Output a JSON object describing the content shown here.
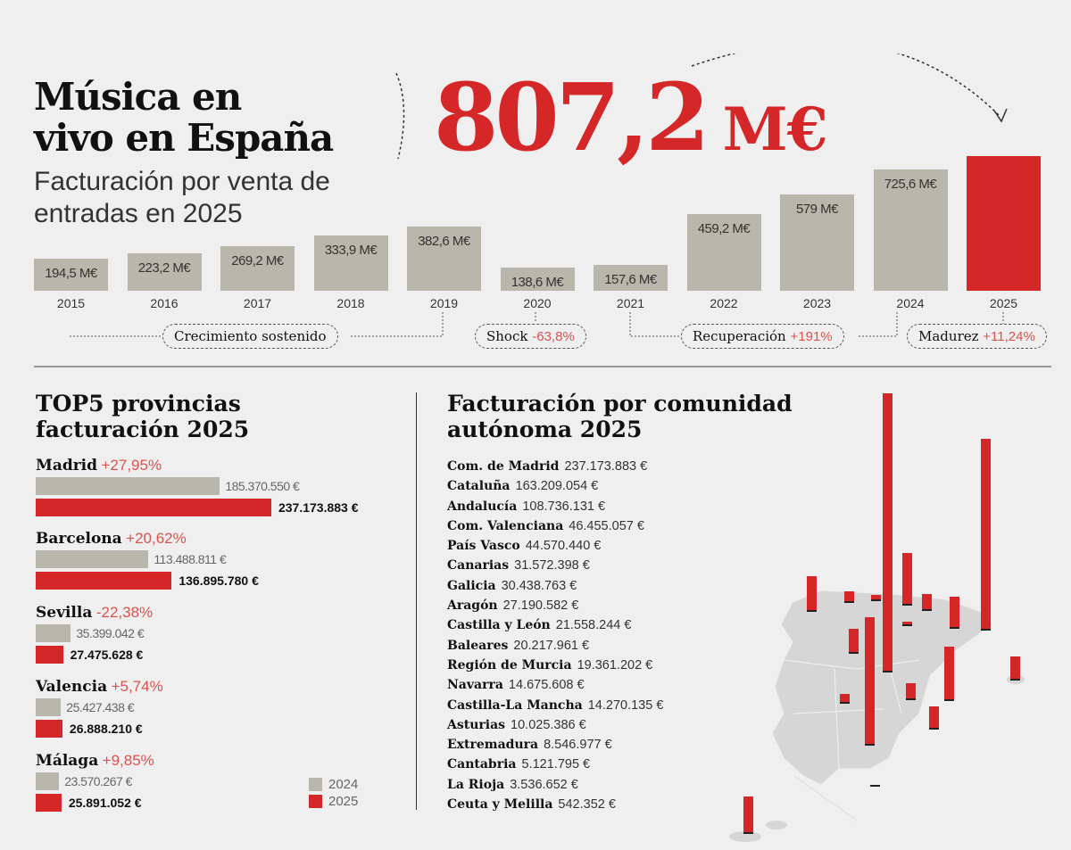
{
  "header": {
    "title_line1": "Música en",
    "title_line2": "vivo en España",
    "subtitle": "Facturación por venta de entradas en 2025",
    "total_value": "807,2",
    "total_unit": "M€"
  },
  "colors": {
    "accent": "#d62728",
    "gray": "#b9b7ab",
    "change": "#d9534f"
  },
  "chart_data": [
    {
      "type": "bar",
      "title": "",
      "categories": [
        "2015",
        "2016",
        "2017",
        "2018",
        "2019",
        "2020",
        "2021",
        "2022",
        "2023",
        "2024",
        "2025"
      ],
      "values": [
        194.5,
        223.2,
        269.2,
        333.9,
        382.6,
        138.6,
        157.6,
        459.2,
        579,
        725.6,
        807.2
      ],
      "labels": [
        "194,5 M€",
        "223,2 M€",
        "269,2 M€",
        "333,9 M€",
        "382,6 M€",
        "138,6 M€",
        "157,6 M€",
        "459,2 M€",
        "579 M€",
        "725,6 M€",
        ""
      ],
      "unit": "M€",
      "phases": [
        {
          "name": "Crecimiento sostenido",
          "change": ""
        },
        {
          "name": "Shock",
          "change": "-63,8%"
        },
        {
          "name": "Recuperación",
          "change": "+191%"
        },
        {
          "name": "Madurez",
          "change": "+11,24%"
        }
      ]
    },
    {
      "type": "bar",
      "orientation": "horizontal",
      "title": "TOP5 provincias facturación 2025",
      "legend": [
        "2024",
        "2025"
      ],
      "provinces": [
        {
          "name": "Madrid",
          "change": "+27,95%",
          "v2024": 185370550,
          "v2025": 237173883,
          "l2024": "185.370.550 €",
          "l2025": "237.173.883 €"
        },
        {
          "name": "Barcelona",
          "change": "+20,62%",
          "v2024": 113488811,
          "v2025": 136895780,
          "l2024": "113.488.811 €",
          "l2025": "136.895.780 €"
        },
        {
          "name": "Sevilla",
          "change": "-22,38%",
          "v2024": 35399042,
          "v2025": 27475628,
          "l2024": "35.399.042 €",
          "l2025": "27.475.628 €"
        },
        {
          "name": "Valencia",
          "change": "+5,74%",
          "v2024": 25427438,
          "v2025": 26888210,
          "l2024": "25.427.438 €",
          "l2025": "26.888.210 €"
        },
        {
          "name": "Málaga",
          "change": "+9,85%",
          "v2024": 23570267,
          "v2025": 25891052,
          "l2024": "23.570.267 €",
          "l2025": "25.891.052 €"
        }
      ]
    },
    {
      "type": "bar",
      "subtype": "map",
      "title": "Facturación por comunidad autónoma 2025",
      "regions": [
        {
          "name": "Com. de Madrid",
          "value": 237173883,
          "label": "237.173.883 €"
        },
        {
          "name": "Cataluña",
          "value": 163209054,
          "label": "163.209.054 €"
        },
        {
          "name": "Andalucía",
          "value": 108736131,
          "label": "108.736.131 €"
        },
        {
          "name": "Com. Valenciana",
          "value": 46455057,
          "label": "46.455.057 €"
        },
        {
          "name": "País Vasco",
          "value": 44570440,
          "label": "44.570.440 €"
        },
        {
          "name": "Canarias",
          "value": 31572398,
          "label": "31.572.398 €"
        },
        {
          "name": "Galicia",
          "value": 30438763,
          "label": "30.438.763 €"
        },
        {
          "name": "Aragón",
          "value": 27190582,
          "label": "27.190.582 €"
        },
        {
          "name": "Castilla y León",
          "value": 21558244,
          "label": "21.558.244 €"
        },
        {
          "name": "Baleares",
          "value": 20217961,
          "label": "20.217.961 €"
        },
        {
          "name": "Región de Murcia",
          "value": 19361202,
          "label": "19.361.202 €"
        },
        {
          "name": "Navarra",
          "value": 14675608,
          "label": "14.675.608 €"
        },
        {
          "name": "Castilla-La Mancha",
          "value": 14270135,
          "label": "14.270.135 €"
        },
        {
          "name": "Asturias",
          "value": 10025386,
          "label": "10.025.386 €"
        },
        {
          "name": "Extremadura",
          "value": 8546977,
          "label": "8.546.977 €"
        },
        {
          "name": "Cantabria",
          "value": 5121795,
          "label": "5.121.795 €"
        },
        {
          "name": "La Rioja",
          "value": 3536652,
          "label": "3.536.652 €"
        },
        {
          "name": "Ceuta y Melilla",
          "value": 542352,
          "label": "542.352 €"
        }
      ]
    }
  ]
}
